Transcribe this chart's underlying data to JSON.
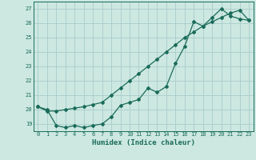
{
  "xlabel": "Humidex (Indice chaleur)",
  "bg_color": "#cce8e0",
  "grid_color": "#aacccc",
  "line_color": "#1a6b5a",
  "xlim": [
    -0.5,
    23.5
  ],
  "ylim": [
    18.5,
    27.5
  ],
  "xticks": [
    0,
    1,
    2,
    3,
    4,
    5,
    6,
    7,
    8,
    9,
    10,
    11,
    12,
    13,
    14,
    15,
    16,
    17,
    18,
    19,
    20,
    21,
    22,
    23
  ],
  "yticks": [
    19,
    20,
    21,
    22,
    23,
    24,
    25,
    26,
    27
  ],
  "line1_x": [
    0,
    1,
    2,
    3,
    4,
    5,
    6,
    7,
    8,
    9,
    10,
    11,
    12,
    13,
    14,
    15,
    16,
    17,
    18,
    19,
    20,
    21,
    22,
    23
  ],
  "line1_y": [
    20.2,
    20.0,
    18.9,
    18.75,
    18.9,
    18.75,
    18.9,
    19.0,
    19.5,
    20.3,
    20.5,
    20.7,
    21.5,
    21.2,
    21.6,
    23.2,
    24.4,
    26.1,
    25.8,
    26.4,
    27.0,
    26.5,
    26.3,
    26.2
  ],
  "line2_x": [
    0,
    1,
    2,
    3,
    4,
    5,
    6,
    7,
    8,
    9,
    10,
    11,
    12,
    13,
    14,
    15,
    16,
    17,
    18,
    19,
    20,
    21,
    22,
    23
  ],
  "line2_y": [
    20.2,
    19.9,
    19.9,
    20.0,
    20.1,
    20.2,
    20.35,
    20.5,
    21.0,
    21.5,
    22.0,
    22.5,
    23.0,
    23.5,
    24.0,
    24.5,
    25.0,
    25.4,
    25.8,
    26.1,
    26.4,
    26.7,
    26.9,
    26.2
  ],
  "tick_fontsize": 5.0,
  "xlabel_fontsize": 6.5,
  "marker_size": 2.0,
  "linewidth": 0.9
}
